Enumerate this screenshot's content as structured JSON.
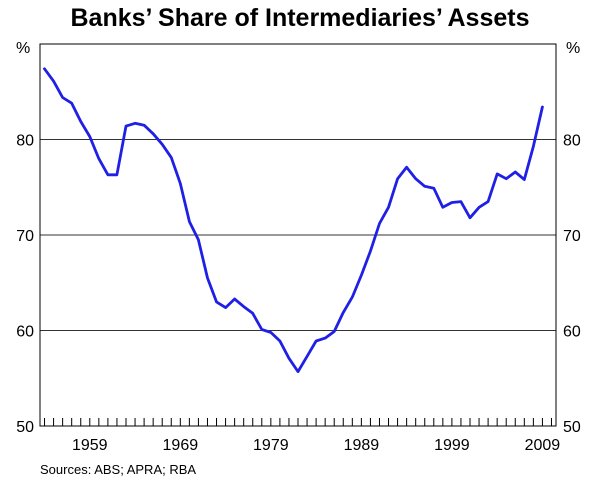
{
  "title": "Banks’ Share of Intermediaries’ Assets",
  "source": "Sources: ABS; APRA; RBA",
  "unit_left": "%",
  "unit_right": "%",
  "colors": {
    "line": "#1f1fe6",
    "grid": "#333333",
    "frame": "#000000"
  },
  "chart_data": {
    "type": "line",
    "title": "Banks’ Share of Intermediaries’ Assets",
    "xlabel": "",
    "ylabel": "%",
    "xlim": [
      1953.5,
      2010.5
    ],
    "ylim": [
      50,
      90
    ],
    "yticks": [
      50,
      60,
      70,
      80
    ],
    "xticklabels": [
      "1959",
      "1969",
      "1979",
      "1989",
      "1999",
      "2009"
    ],
    "grid": true,
    "series": [
      {
        "values": [
          [
            1954,
            87.4
          ],
          [
            1955,
            86.1
          ],
          [
            1956,
            84.4
          ],
          [
            1957,
            83.8
          ],
          [
            1958,
            81.9
          ],
          [
            1959,
            80.3
          ],
          [
            1960,
            78.0
          ],
          [
            1961,
            76.3
          ],
          [
            1962,
            76.3
          ],
          [
            1963,
            81.4
          ],
          [
            1964,
            81.7
          ],
          [
            1965,
            81.5
          ],
          [
            1966,
            80.6
          ],
          [
            1967,
            79.5
          ],
          [
            1968,
            78.1
          ],
          [
            1969,
            75.4
          ],
          [
            1970,
            71.4
          ],
          [
            1971,
            69.5
          ],
          [
            1972,
            65.5
          ],
          [
            1973,
            63.0
          ],
          [
            1974,
            62.4
          ],
          [
            1975,
            63.3
          ],
          [
            1976,
            62.5
          ],
          [
            1977,
            61.8
          ],
          [
            1978,
            60.1
          ],
          [
            1979,
            59.8
          ],
          [
            1980,
            58.9
          ],
          [
            1981,
            57.1
          ],
          [
            1982,
            55.7
          ],
          [
            1983,
            57.3
          ],
          [
            1984,
            58.9
          ],
          [
            1985,
            59.2
          ],
          [
            1986,
            59.9
          ],
          [
            1987,
            61.9
          ],
          [
            1988,
            63.5
          ],
          [
            1989,
            65.8
          ],
          [
            1990,
            68.3
          ],
          [
            1991,
            71.2
          ],
          [
            1992,
            72.9
          ],
          [
            1993,
            75.9
          ],
          [
            1994,
            77.1
          ],
          [
            1995,
            75.9
          ],
          [
            1996,
            75.1
          ],
          [
            1997,
            74.9
          ],
          [
            1998,
            72.9
          ],
          [
            1999,
            73.4
          ],
          [
            2000,
            73.5
          ],
          [
            2001,
            71.8
          ],
          [
            2002,
            72.9
          ],
          [
            2003,
            73.5
          ],
          [
            2004,
            76.4
          ],
          [
            2005,
            75.9
          ],
          [
            2006,
            76.6
          ],
          [
            2007,
            75.8
          ],
          [
            2008,
            79.3
          ],
          [
            2009,
            83.4
          ]
        ]
      }
    ]
  }
}
